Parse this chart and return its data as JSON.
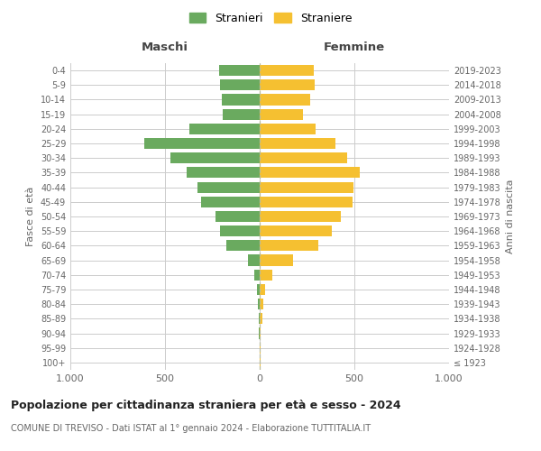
{
  "age_groups": [
    "100+",
    "95-99",
    "90-94",
    "85-89",
    "80-84",
    "75-79",
    "70-74",
    "65-69",
    "60-64",
    "55-59",
    "50-54",
    "45-49",
    "40-44",
    "35-39",
    "30-34",
    "25-29",
    "20-24",
    "15-19",
    "10-14",
    "5-9",
    "0-4"
  ],
  "birth_years": [
    "≤ 1923",
    "1924-1928",
    "1929-1933",
    "1934-1938",
    "1939-1943",
    "1944-1948",
    "1949-1953",
    "1954-1958",
    "1959-1963",
    "1964-1968",
    "1969-1973",
    "1974-1978",
    "1979-1983",
    "1984-1988",
    "1989-1993",
    "1994-1998",
    "1999-2003",
    "2004-2008",
    "2009-2013",
    "2014-2018",
    "2019-2023"
  ],
  "maschi": [
    2,
    2,
    3,
    5,
    8,
    15,
    30,
    60,
    175,
    210,
    235,
    310,
    330,
    385,
    470,
    610,
    370,
    195,
    200,
    210,
    215
  ],
  "femmine": [
    3,
    3,
    5,
    12,
    18,
    30,
    65,
    175,
    310,
    380,
    430,
    490,
    495,
    530,
    460,
    400,
    295,
    230,
    265,
    290,
    285
  ],
  "maschi_color": "#6aaa5f",
  "femmine_color": "#f5c031",
  "background_color": "#ffffff",
  "grid_color": "#cccccc",
  "title": "Popolazione per cittadinanza straniera per età e sesso - 2024",
  "subtitle": "COMUNE DI TREVISO - Dati ISTAT al 1° gennaio 2024 - Elaborazione TUTTITALIA.IT",
  "xlabel_left": "Maschi",
  "xlabel_right": "Femmine",
  "ylabel_left": "Fasce di età",
  "ylabel_right": "Anni di nascita",
  "legend_maschi": "Stranieri",
  "legend_femmine": "Straniere",
  "xlim": 1000,
  "xtick_labels": [
    "1.000",
    "500",
    "0",
    "500",
    "1.000"
  ]
}
